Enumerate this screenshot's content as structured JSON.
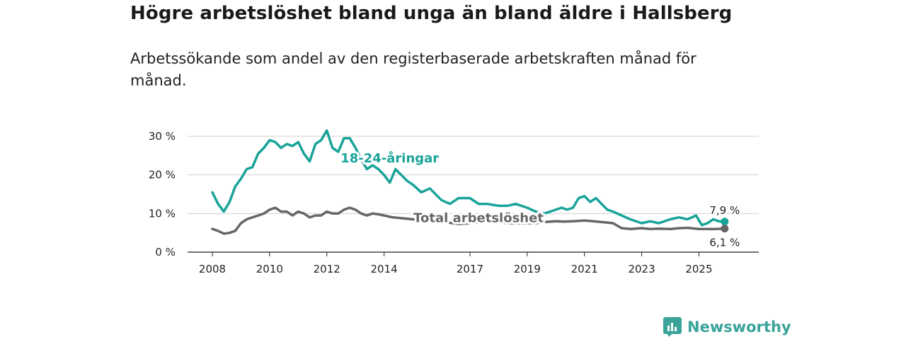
{
  "chart_data": {
    "type": "line",
    "title": "Högre arbetslöshet bland unga än bland äldre i Hallsberg",
    "subtitle": "Arbetssökande som andel av den registerbaserade arbetskraften månad för månad.",
    "xlabel": "",
    "ylabel": "",
    "xlim": [
      2008,
      2026.3
    ],
    "ylim": [
      0,
      30
    ],
    "x_ticks": [
      2008,
      2010,
      2012,
      2014,
      2017,
      2019,
      2021,
      2023,
      2025
    ],
    "y_ticks": [
      {
        "value": 0,
        "label": "0 %"
      },
      {
        "value": 10,
        "label": "10 %"
      },
      {
        "value": 20,
        "label": "20 %"
      },
      {
        "value": 30,
        "label": "30 %"
      }
    ],
    "grid": "horizontal",
    "series": [
      {
        "name": "18-24-åringar",
        "color": "#19a399",
        "label_x": 2014.2,
        "label_y": 23.2,
        "end_label": "7,9 %",
        "x": [
          2008.0,
          2008.2,
          2008.4,
          2008.6,
          2008.8,
          2009.0,
          2009.2,
          2009.4,
          2009.6,
          2009.8,
          2010.0,
          2010.2,
          2010.4,
          2010.6,
          2010.8,
          2011.0,
          2011.2,
          2011.4,
          2011.6,
          2011.8,
          2012.0,
          2012.2,
          2012.4,
          2012.6,
          2012.8,
          2013.0,
          2013.2,
          2013.4,
          2013.6,
          2013.8,
          2014.0,
          2014.2,
          2014.4,
          2014.6,
          2014.8,
          2015.0,
          2015.3,
          2015.6,
          2016.0,
          2016.3,
          2016.6,
          2017.0,
          2017.3,
          2017.6,
          2018.0,
          2018.3,
          2018.6,
          2019.0,
          2019.3,
          2019.6,
          2019.8,
          2020.0,
          2020.2,
          2020.4,
          2020.6,
          2020.8,
          2021.0,
          2021.2,
          2021.4,
          2021.6,
          2021.8,
          2022.0,
          2022.3,
          2022.6,
          2023.0,
          2023.3,
          2023.6,
          2024.0,
          2024.3,
          2024.6,
          2024.9,
          2025.1,
          2025.3,
          2025.5,
          2025.7,
          2025.9
        ],
        "values": [
          15.5,
          12.5,
          10.5,
          13.0,
          17.0,
          19.0,
          21.5,
          22.0,
          25.5,
          27.0,
          29.0,
          28.5,
          27.0,
          28.0,
          27.5,
          28.5,
          25.5,
          23.5,
          28.0,
          29.0,
          31.5,
          27.0,
          26.0,
          29.5,
          29.5,
          27.0,
          24.0,
          21.5,
          22.5,
          21.5,
          20.0,
          18.0,
          21.5,
          20.0,
          18.5,
          17.5,
          15.5,
          16.5,
          13.5,
          12.5,
          14.0,
          14.0,
          12.5,
          12.5,
          12.0,
          12.0,
          12.5,
          11.5,
          10.5,
          10.0,
          10.5,
          11.0,
          11.5,
          11.0,
          11.5,
          14.0,
          14.5,
          13.0,
          14.0,
          12.5,
          11.0,
          10.5,
          9.5,
          8.5,
          7.5,
          8.0,
          7.5,
          8.5,
          9.0,
          8.5,
          9.5,
          7.0,
          7.5,
          8.5,
          8.0,
          7.9
        ]
      },
      {
        "name": "Total arbetslöshet",
        "color": "#666666",
        "label_x": 2017.3,
        "label_y": 7.8,
        "end_label": "6,1 %",
        "x": [
          2008.0,
          2008.2,
          2008.4,
          2008.6,
          2008.8,
          2009.0,
          2009.2,
          2009.4,
          2009.6,
          2009.8,
          2010.0,
          2010.2,
          2010.4,
          2010.6,
          2010.8,
          2011.0,
          2011.2,
          2011.4,
          2011.6,
          2011.8,
          2012.0,
          2012.2,
          2012.4,
          2012.6,
          2012.8,
          2013.0,
          2013.2,
          2013.4,
          2013.6,
          2013.8,
          2014.0,
          2014.3,
          2014.6,
          2015.0,
          2015.3,
          2015.6,
          2016.0,
          2016.3,
          2016.6,
          2017.0,
          2017.3,
          2017.6,
          2018.0,
          2018.3,
          2018.6,
          2019.0,
          2019.3,
          2019.6,
          2020.0,
          2020.3,
          2020.6,
          2021.0,
          2021.3,
          2021.6,
          2022.0,
          2022.3,
          2022.6,
          2023.0,
          2023.3,
          2023.6,
          2024.0,
          2024.3,
          2024.6,
          2025.0,
          2025.3,
          2025.6,
          2025.9
        ],
        "values": [
          6.0,
          5.5,
          4.8,
          5.0,
          5.5,
          7.5,
          8.5,
          9.0,
          9.5,
          10.0,
          11.0,
          11.5,
          10.5,
          10.5,
          9.5,
          10.5,
          10.0,
          9.0,
          9.5,
          9.5,
          10.5,
          10.0,
          10.0,
          11.0,
          11.5,
          11.0,
          10.0,
          9.5,
          10.0,
          9.8,
          9.5,
          9.0,
          8.8,
          8.5,
          8.3,
          8.0,
          8.2,
          7.6,
          7.3,
          7.5,
          7.8,
          8.0,
          7.8,
          7.5,
          7.5,
          7.5,
          7.5,
          7.8,
          8.0,
          7.9,
          8.0,
          8.2,
          8.0,
          7.8,
          7.5,
          6.2,
          6.0,
          6.2,
          6.0,
          6.1,
          6.0,
          6.2,
          6.3,
          6.0,
          6.0,
          6.0,
          6.1
        ]
      }
    ]
  },
  "brand": {
    "name": "Newsworthy",
    "color": "#3aa39a",
    "icon": "newsworthy-logo-icon"
  }
}
